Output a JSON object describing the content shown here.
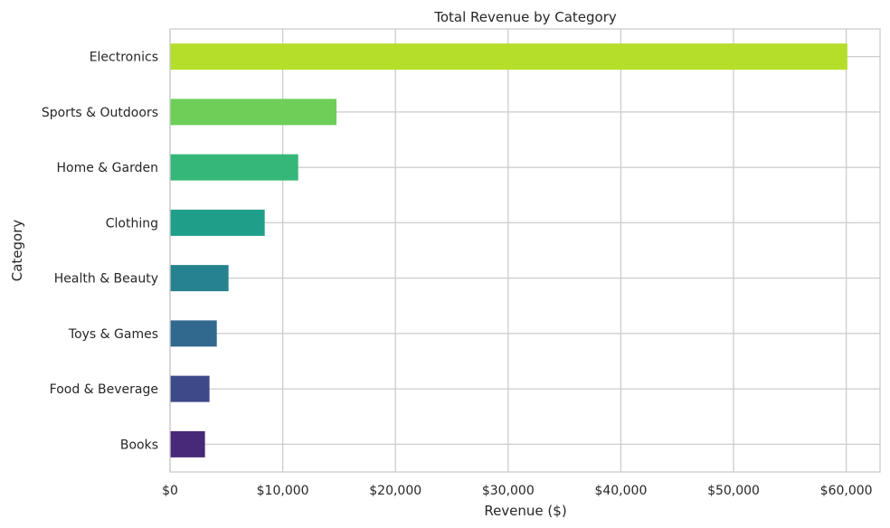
{
  "chart_data": {
    "type": "bar",
    "orientation": "horizontal",
    "title": "Total Revenue by Category",
    "xlabel": "Revenue ($)",
    "ylabel": "Category",
    "xlim": [
      0,
      63000
    ],
    "xticks": [
      0,
      10000,
      20000,
      30000,
      40000,
      50000,
      60000
    ],
    "xtick_labels": [
      "$0",
      "$10,000",
      "$20,000",
      "$30,000",
      "$40,000",
      "$50,000",
      "$60,000"
    ],
    "grid": true,
    "categories": [
      "Electronics",
      "Sports & Outdoors",
      "Home & Garden",
      "Clothing",
      "Health & Beauty",
      "Toys & Games",
      "Food & Beverage",
      "Books"
    ],
    "values": [
      60100,
      14770,
      11370,
      8400,
      5190,
      4150,
      3500,
      3100
    ],
    "colors": [
      "#b5de2b",
      "#6ece58",
      "#35b779",
      "#1f9e89",
      "#26828e",
      "#31688e",
      "#3e4989",
      "#482878"
    ]
  }
}
